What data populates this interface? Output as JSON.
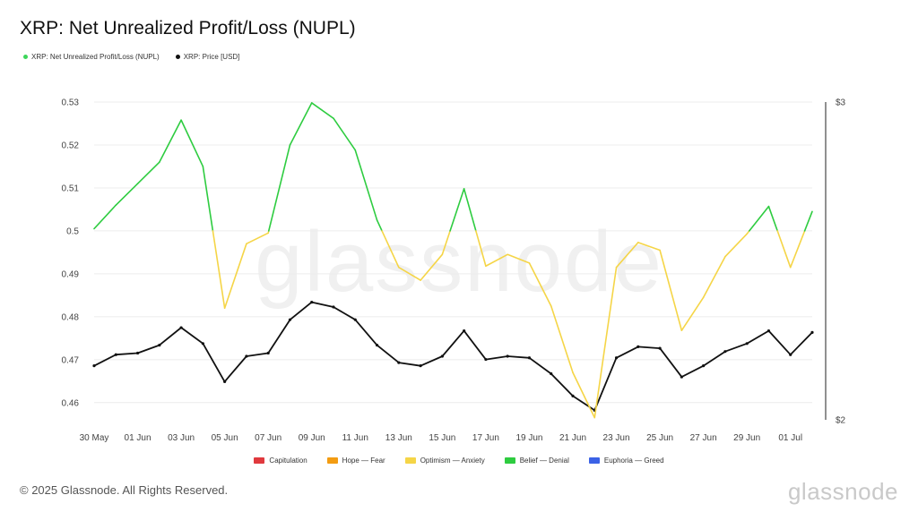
{
  "header": {
    "title": "XRP: Net Unrealized Profit/Loss (NUPL)"
  },
  "top_legend": [
    {
      "label": "XRP: Net Unrealized Profit/Loss (NUPL)",
      "color": "#3dd65a"
    },
    {
      "label": "XRP: Price [USD]",
      "color": "#111111"
    }
  ],
  "zone_legend": [
    {
      "label": "Capitulation",
      "color": "#e0393e"
    },
    {
      "label": "Hope — Fear",
      "color": "#f39c12"
    },
    {
      "label": "Optimism — Anxiety",
      "color": "#f5d547"
    },
    {
      "label": "Belief — Denial",
      "color": "#2ecc40"
    },
    {
      "label": "Euphoria — Greed",
      "color": "#3b62e6"
    }
  ],
  "watermark": "glassnode",
  "footer": {
    "copyright": "© 2025 Glassnode. All Rights Reserved.",
    "brand": "glassnode"
  },
  "chart_data": {
    "type": "line",
    "title": "XRP: Net Unrealized Profit/Loss (NUPL)",
    "x": [
      "30 May",
      "31 May",
      "01 Jun",
      "02 Jun",
      "03 Jun",
      "04 Jun",
      "05 Jun",
      "06 Jun",
      "07 Jun",
      "08 Jun",
      "09 Jun",
      "10 Jun",
      "11 Jun",
      "12 Jun",
      "13 Jun",
      "14 Jun",
      "15 Jun",
      "16 Jun",
      "17 Jun",
      "18 Jun",
      "19 Jun",
      "20 Jun",
      "21 Jun",
      "22 Jun",
      "23 Jun",
      "24 Jun",
      "25 Jun",
      "26 Jun",
      "27 Jun",
      "28 Jun",
      "29 Jun",
      "30 Jun",
      "01 Jul",
      "02 Jul"
    ],
    "x_tick_labels": [
      "30 May",
      "01 Jun",
      "03 Jun",
      "05 Jun",
      "07 Jun",
      "09 Jun",
      "11 Jun",
      "13 Jun",
      "15 Jun",
      "17 Jun",
      "19 Jun",
      "21 Jun",
      "23 Jun",
      "25 Jun",
      "27 Jun",
      "29 Jun",
      "01 Jul"
    ],
    "y_left": {
      "ticks": [
        "0.46",
        "0.47",
        "0.48",
        "0.49",
        "0.5",
        "0.51",
        "0.52",
        "0.53"
      ],
      "ylim": [
        0.456,
        0.53
      ]
    },
    "y_right": {
      "ticks": [
        "$2",
        "$3"
      ],
      "ylim": [
        2.0,
        3.0
      ]
    },
    "zone_threshold": 0.5,
    "series": [
      {
        "name": "XRP: Net Unrealized Profit/Loss (NUPL)",
        "axis": "left",
        "values": [
          0.5005,
          0.506,
          0.511,
          0.516,
          0.5258,
          0.515,
          0.482,
          0.497,
          0.4995,
          0.52,
          0.5298,
          0.5262,
          0.5188,
          0.5025,
          0.4915,
          0.4885,
          0.4945,
          0.5098,
          0.4918,
          0.4945,
          0.4925,
          0.4825,
          0.467,
          0.4565,
          0.4915,
          0.4973,
          0.4955,
          0.4768,
          0.4845,
          0.494,
          0.4993,
          0.5057,
          0.4915,
          0.5045
        ],
        "color_above": "#2ecc40",
        "color_below": "#f5d547"
      },
      {
        "name": "XRP: Price [USD]",
        "axis": "right",
        "values": [
          2.17,
          2.205,
          2.21,
          2.235,
          2.29,
          2.24,
          2.12,
          2.2,
          2.21,
          2.315,
          2.37,
          2.355,
          2.315,
          2.235,
          2.18,
          2.17,
          2.2,
          2.28,
          2.19,
          2.2,
          2.195,
          2.145,
          2.075,
          2.03,
          2.195,
          2.23,
          2.225,
          2.135,
          2.17,
          2.215,
          2.24,
          2.28,
          2.205,
          2.275
        ],
        "color": "#111111"
      }
    ]
  }
}
